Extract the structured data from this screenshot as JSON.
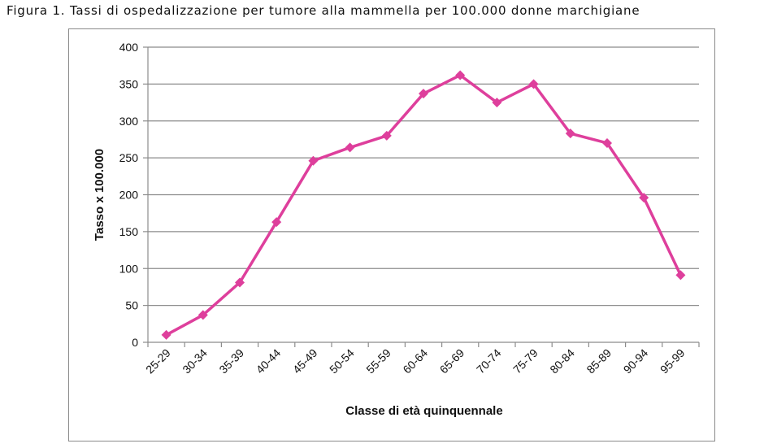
{
  "figure": {
    "title": "Figura 1. Tassi di ospedalizzazione per tumore alla mammella per 100.000 donne marchigiane"
  },
  "chart_data": {
    "type": "line",
    "title": "Figura 1. Tassi di ospedalizzazione per tumore alla mammella per 100.000 donne marchigiane",
    "xlabel": "Classe di età quinquennale",
    "ylabel": "Tasso x 100.000",
    "categories": [
      "25-29",
      "30-34",
      "35-39",
      "40-44",
      "45-49",
      "50-54",
      "55-59",
      "60-64",
      "65-69",
      "70-74",
      "75-79",
      "80-84",
      "85-89",
      "90-94",
      "95-99"
    ],
    "series": [
      {
        "values": [
          10,
          37,
          81,
          163,
          246,
          264,
          280,
          337,
          362,
          325,
          350,
          283,
          270,
          196,
          91
        ],
        "color": "#de3f9c",
        "marker": "diamond"
      }
    ],
    "ylim": [
      0,
      400
    ],
    "yticks": [
      0,
      50,
      100,
      150,
      200,
      250,
      300,
      350,
      400
    ],
    "grid": true,
    "legend": "none"
  }
}
